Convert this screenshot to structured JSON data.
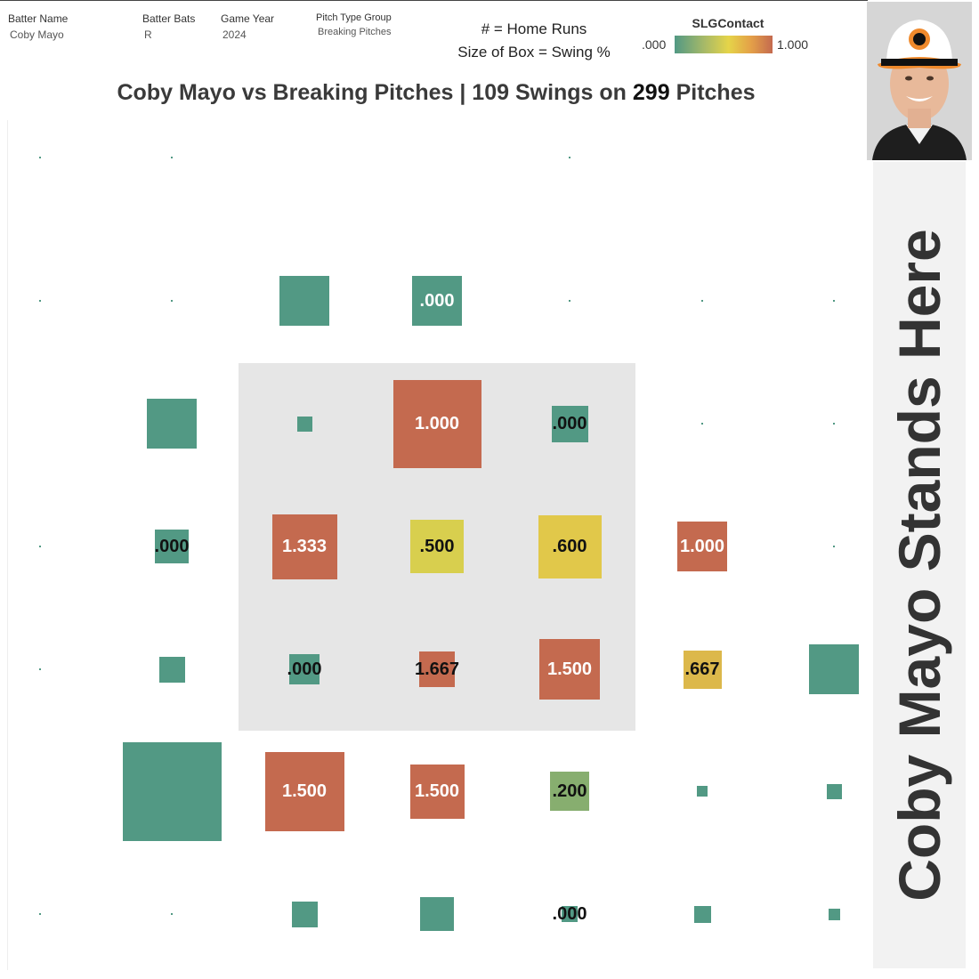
{
  "filters": {
    "batter_name": {
      "label": "Batter Name",
      "value": "Coby Mayo"
    },
    "batter_bats": {
      "label": "Batter Bats",
      "value": "R"
    },
    "game_year": {
      "label": "Game Year",
      "value": "2024"
    },
    "pitch_type_group": {
      "label": "Pitch Type Group",
      "value": "Breaking Pitches"
    }
  },
  "legend": {
    "line1": "# = Home Runs",
    "line2": "Size of Box = Swing %"
  },
  "color_scale": {
    "title": "SLGContact",
    "min_label": ".000",
    "max_label": "1.000",
    "low_color": "#529984",
    "mid_color": "#e5d449",
    "high_color": "#c46a4f"
  },
  "title": {
    "part1": "Coby Mayo vs Breaking Pitches |  109 Swings on ",
    "part2": "299",
    "part3": " Pitches"
  },
  "sidebar": {
    "text": "Coby Mayo Stands Here"
  },
  "chart_data": {
    "type": "heatmap",
    "columns": 7,
    "rows": 7,
    "color_metric": "SLGContact",
    "size_metric": "Swing %",
    "strike_zone": {
      "col_start": 2,
      "col_end": 4,
      "row_start": 2,
      "row_end": 4
    },
    "cells": [
      {
        "row": 0,
        "col": 0,
        "swing_frac": 0.01,
        "slg": 0,
        "label": ""
      },
      {
        "row": 0,
        "col": 1,
        "swing_frac": 0.01,
        "slg": 0,
        "label": ""
      },
      {
        "row": 0,
        "col": 4,
        "swing_frac": 0.01,
        "slg": 0,
        "label": ""
      },
      {
        "row": 1,
        "col": 0,
        "swing_frac": 0.01,
        "slg": 0,
        "label": ""
      },
      {
        "row": 1,
        "col": 1,
        "swing_frac": 0.01,
        "slg": 0,
        "label": ""
      },
      {
        "row": 1,
        "col": 2,
        "swing_frac": 0.5,
        "slg": 0,
        "label": ""
      },
      {
        "row": 1,
        "col": 3,
        "swing_frac": 0.5,
        "slg": 0,
        "label": ".000"
      },
      {
        "row": 1,
        "col": 4,
        "swing_frac": 0.01,
        "slg": 0,
        "label": ""
      },
      {
        "row": 1,
        "col": 5,
        "swing_frac": 0.01,
        "slg": 0,
        "label": ""
      },
      {
        "row": 1,
        "col": 6,
        "swing_frac": 0.01,
        "slg": 0,
        "label": ""
      },
      {
        "row": 2,
        "col": 1,
        "swing_frac": 0.5,
        "slg": 0,
        "label": ""
      },
      {
        "row": 2,
        "col": 2,
        "swing_frac": 0.15,
        "slg": 0,
        "label": ""
      },
      {
        "row": 2,
        "col": 3,
        "swing_frac": 0.89,
        "slg": 1.0,
        "label": "1.000"
      },
      {
        "row": 2,
        "col": 4,
        "swing_frac": 0.37,
        "slg": 0,
        "label": ".000"
      },
      {
        "row": 2,
        "col": 5,
        "swing_frac": 0.01,
        "slg": 0,
        "label": ""
      },
      {
        "row": 2,
        "col": 6,
        "swing_frac": 0.01,
        "slg": 0,
        "label": ""
      },
      {
        "row": 3,
        "col": 0,
        "swing_frac": 0.01,
        "slg": 0,
        "label": ""
      },
      {
        "row": 3,
        "col": 1,
        "swing_frac": 0.34,
        "slg": 0,
        "label": ".000"
      },
      {
        "row": 3,
        "col": 2,
        "swing_frac": 0.66,
        "slg": 1.333,
        "label": "1.333"
      },
      {
        "row": 3,
        "col": 3,
        "swing_frac": 0.54,
        "slg": 0.5,
        "label": ".500"
      },
      {
        "row": 3,
        "col": 4,
        "swing_frac": 0.64,
        "slg": 0.6,
        "label": ".600"
      },
      {
        "row": 3,
        "col": 5,
        "swing_frac": 0.5,
        "slg": 1.0,
        "label": "1.000"
      },
      {
        "row": 3,
        "col": 6,
        "swing_frac": 0.01,
        "slg": 0,
        "label": ""
      },
      {
        "row": 4,
        "col": 0,
        "swing_frac": 0.01,
        "slg": 0,
        "label": ""
      },
      {
        "row": 4,
        "col": 1,
        "swing_frac": 0.26,
        "slg": 0,
        "label": ""
      },
      {
        "row": 4,
        "col": 2,
        "swing_frac": 0.31,
        "slg": 0,
        "label": ".000"
      },
      {
        "row": 4,
        "col": 3,
        "swing_frac": 0.36,
        "slg": 1.667,
        "label": "1.667"
      },
      {
        "row": 4,
        "col": 4,
        "swing_frac": 0.61,
        "slg": 1.5,
        "label": "1.500"
      },
      {
        "row": 4,
        "col": 5,
        "swing_frac": 0.39,
        "slg": 0.667,
        "label": ".667"
      },
      {
        "row": 4,
        "col": 6,
        "swing_frac": 0.5,
        "slg": 0,
        "label": ""
      },
      {
        "row": 5,
        "col": 1,
        "swing_frac": 1.0,
        "slg": 0,
        "label": ""
      },
      {
        "row": 5,
        "col": 2,
        "swing_frac": 0.8,
        "slg": 1.5,
        "label": "1.500"
      },
      {
        "row": 5,
        "col": 3,
        "swing_frac": 0.55,
        "slg": 1.5,
        "label": "1.500"
      },
      {
        "row": 5,
        "col": 4,
        "swing_frac": 0.4,
        "slg": 0.2,
        "label": ".200"
      },
      {
        "row": 5,
        "col": 5,
        "swing_frac": 0.11,
        "slg": 0,
        "label": ""
      },
      {
        "row": 5,
        "col": 6,
        "swing_frac": 0.15,
        "slg": 0,
        "label": ""
      },
      {
        "row": 6,
        "col": 0,
        "swing_frac": 0.01,
        "slg": 0,
        "label": ""
      },
      {
        "row": 6,
        "col": 1,
        "swing_frac": 0.01,
        "slg": 0,
        "label": ""
      },
      {
        "row": 6,
        "col": 2,
        "swing_frac": 0.26,
        "slg": 0,
        "label": ""
      },
      {
        "row": 6,
        "col": 3,
        "swing_frac": 0.34,
        "slg": 0,
        "label": ""
      },
      {
        "row": 6,
        "col": 4,
        "swing_frac": 0.16,
        "slg": 0,
        "label": ".000"
      },
      {
        "row": 6,
        "col": 5,
        "swing_frac": 0.17,
        "slg": 0,
        "label": ""
      },
      {
        "row": 6,
        "col": 6,
        "swing_frac": 0.12,
        "slg": 0,
        "label": ""
      }
    ]
  }
}
